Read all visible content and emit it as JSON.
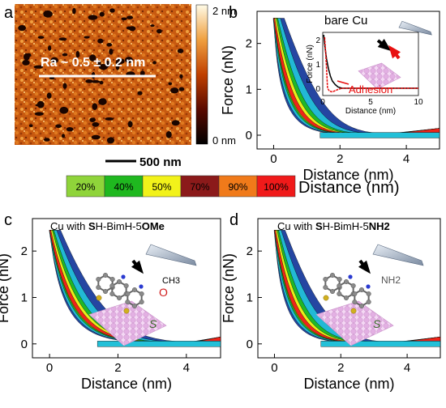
{
  "panel_a": {
    "letter": "a",
    "roughness_text": "Ra ~ 0.5 ± 0.2 nm",
    "colorbar_max": "2 nm",
    "colorbar_min": "0 nm",
    "scale_bar": "500 nm"
  },
  "density_scale": {
    "labels": [
      "20%",
      "40%",
      "50%",
      "70%",
      "90%",
      "100%"
    ],
    "colors": [
      "#8fd43a",
      "#1fb81f",
      "#f2f21a",
      "#8b1a1a",
      "#f07a1a",
      "#f01a1a"
    ],
    "axis_label": "Distance (nm)"
  },
  "colors": {
    "contour_outer": "#1a3d9e",
    "contour_mid": "#22c0d8",
    "contour_inner": "#1fb81f",
    "contour_core": "#f01a1a",
    "approach": "#000000",
    "retract": "#e81010",
    "molecule_grey": "#8a8a8a",
    "surface": "#e8b8e8"
  },
  "chart_data": [
    {
      "type": "contour",
      "panel": "b",
      "title": "bare Cu",
      "xlabel": "Distance (nm)",
      "ylabel": "Force (nN)",
      "xlim": [
        -0.5,
        5
      ],
      "ylim": [
        -0.3,
        2.7
      ],
      "x_ticks": [
        "0",
        "2",
        "4"
      ],
      "y_ticks": [
        "0",
        "1",
        "2"
      ],
      "decay_length": 0.55,
      "peak_force": 2.6,
      "inset": {
        "xlabel": "Distance (nm)",
        "ylabel": "Force (nN)",
        "xlim": [
          0,
          10
        ],
        "ylim": [
          -0.3,
          2.3
        ],
        "x_ticks": [
          "0",
          "5",
          "10"
        ],
        "y_ticks": [
          "0",
          "1",
          "2"
        ],
        "annotation": "Adhesion",
        "approach_x": [
          0.1,
          0.2,
          0.4,
          0.6,
          0.8,
          1.0,
          1.3,
          1.6,
          2.0,
          3,
          4,
          5,
          6,
          7,
          8,
          9,
          10
        ],
        "approach_y": [
          2.2,
          1.8,
          1.2,
          0.8,
          0.5,
          0.3,
          0.15,
          0.05,
          0.0,
          0.0,
          0.0,
          0.0,
          0.0,
          0.0,
          0.0,
          0.0,
          0.0
        ],
        "retract_x": [
          0.2,
          0.3,
          0.4,
          0.5,
          0.7,
          1.0,
          1.3,
          1.6,
          2.0,
          3,
          4,
          5,
          6,
          7,
          8,
          9,
          10
        ],
        "retract_y": [
          2.1,
          1.5,
          0.8,
          0.0,
          -0.12,
          -0.15,
          -0.1,
          -0.05,
          0.0,
          0.0,
          0.0,
          0.0,
          0.0,
          0.0,
          0.0,
          0.0,
          0.0
        ]
      }
    },
    {
      "type": "contour",
      "panel": "c",
      "title_parts": [
        "Cu with ",
        "S",
        "H-BimH-5",
        "OMe"
      ],
      "xlabel": "Distance (nm)",
      "ylabel": "Force (nN)",
      "xlim": [
        -0.5,
        5
      ],
      "ylim": [
        -0.3,
        2.7
      ],
      "x_ticks": [
        "0",
        "2",
        "4"
      ],
      "y_ticks": [
        "0",
        "1",
        "2"
      ],
      "decay_length": 0.75,
      "peak_force": 2.5,
      "molecule_labels": [
        "CH3",
        "O",
        "S"
      ]
    },
    {
      "type": "contour",
      "panel": "d",
      "title_parts": [
        "Cu with ",
        "S",
        "H-BimH-5",
        "NH2"
      ],
      "xlabel": "Distance (nm)",
      "ylabel": "Force (nN)",
      "xlim": [
        -0.5,
        5
      ],
      "ylim": [
        -0.3,
        2.7
      ],
      "x_ticks": [
        "0",
        "2",
        "4"
      ],
      "y_ticks": [
        "0",
        "1",
        "2"
      ],
      "decay_length": 0.6,
      "peak_force": 2.5,
      "molecule_labels": [
        "NH2",
        "S"
      ]
    }
  ]
}
